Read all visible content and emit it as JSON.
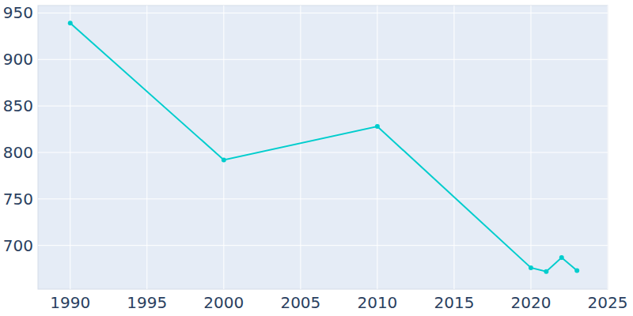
{
  "chart_data": {
    "type": "line",
    "x": [
      1990,
      2000,
      2010,
      2020,
      2021,
      2022,
      2023
    ],
    "series": [
      {
        "values": [
          939,
          792,
          828,
          676,
          672,
          687,
          673
        ],
        "color": "#00cdcd",
        "marker": "circle"
      }
    ],
    "xlim": [
      1987.9,
      2025
    ],
    "xticks": [
      1990,
      1995,
      2000,
      2005,
      2010,
      2015,
      2020,
      2025
    ],
    "ylim": [
      653,
      958
    ],
    "yticks": [
      700,
      750,
      800,
      850,
      900,
      950
    ],
    "grid": true
  }
}
